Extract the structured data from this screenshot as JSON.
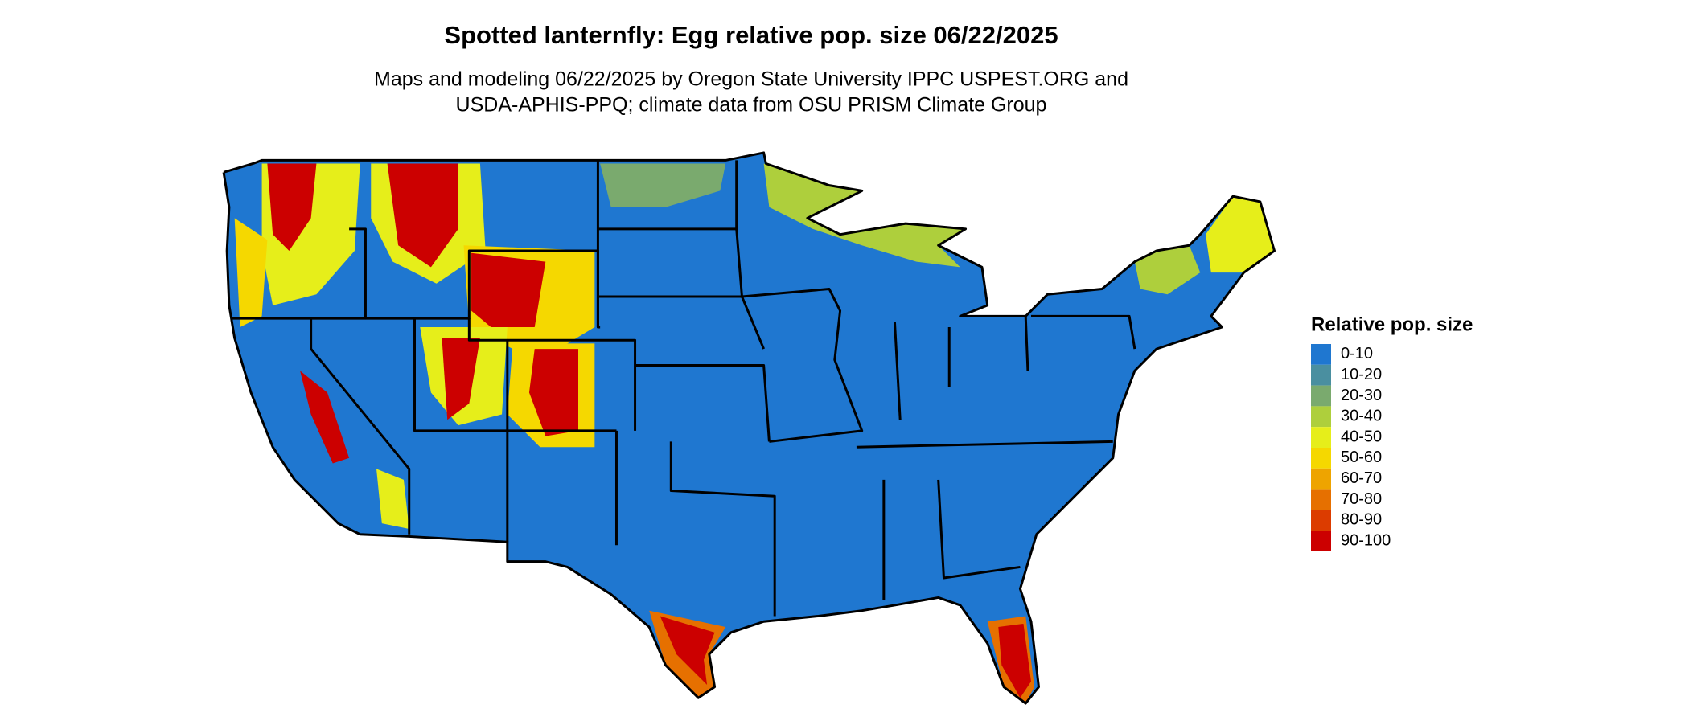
{
  "header": {
    "title": "Spotted lanternfly: Egg relative pop. size 06/22/2025",
    "subtitle_lines": [
      "Maps and modeling 06/22/2025 by Oregon State University IPPC USPEST.ORG and",
      "USDA-APHIS-PPQ; climate data from OSU PRISM Climate Group"
    ]
  },
  "legend": {
    "title": "Relative pop. size",
    "items": [
      {
        "label": "0-10",
        "color": "#1f77d0"
      },
      {
        "label": "10-20",
        "color": "#4a8fa0"
      },
      {
        "label": "20-30",
        "color": "#7aaa6e"
      },
      {
        "label": "30-40",
        "color": "#aecf3c"
      },
      {
        "label": "40-50",
        "color": "#e6ee1a"
      },
      {
        "label": "50-60",
        "color": "#f5d800"
      },
      {
        "label": "60-70",
        "color": "#eea400"
      },
      {
        "label": "70-80",
        "color": "#e67000"
      },
      {
        "label": "80-90",
        "color": "#dc3c00"
      },
      {
        "label": "90-100",
        "color": "#cc0000"
      }
    ]
  }
}
